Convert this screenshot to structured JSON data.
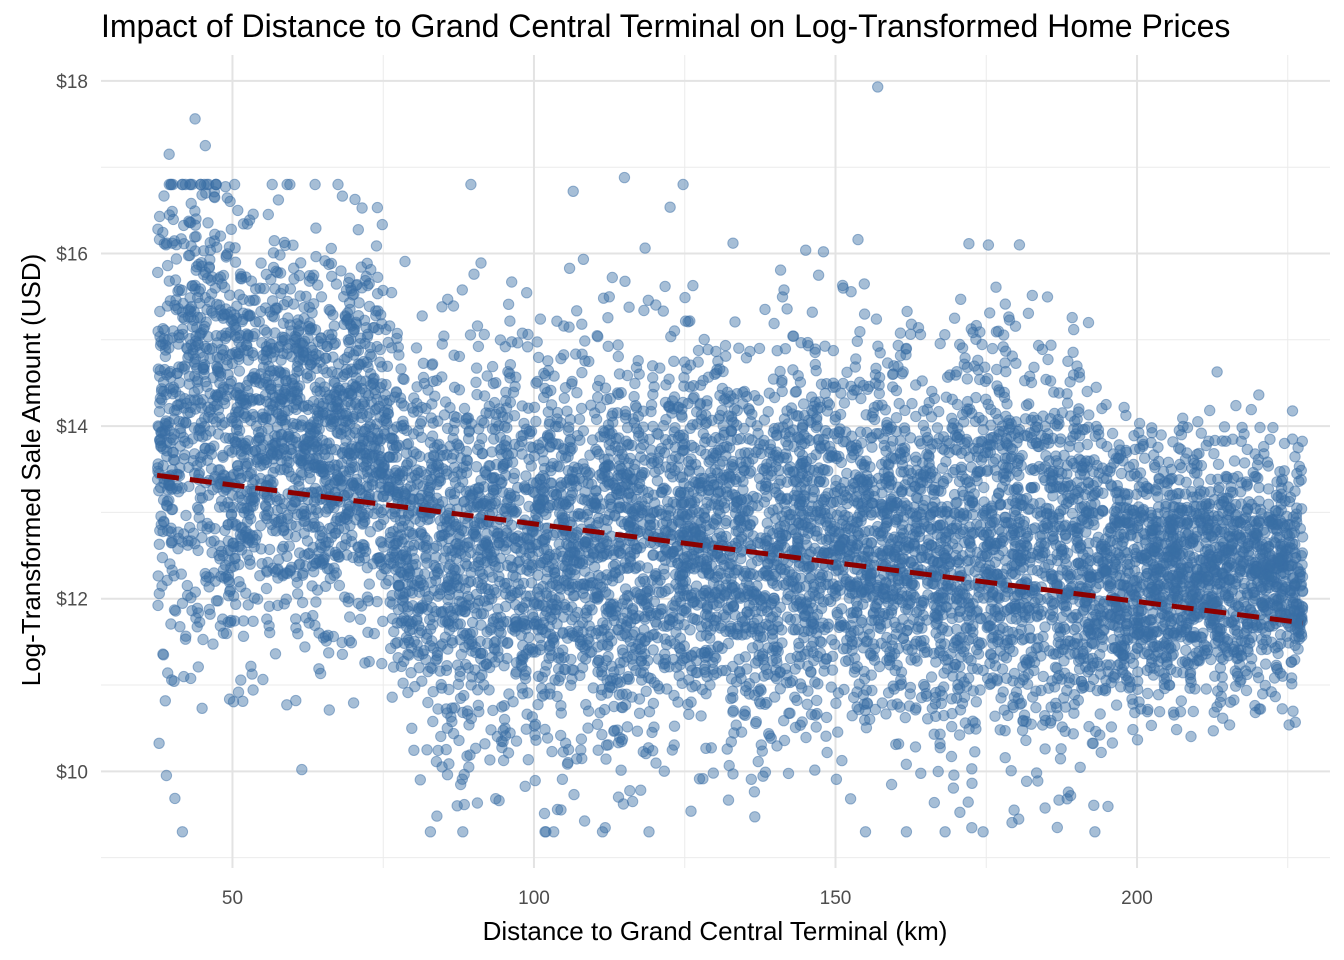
{
  "chart_data": {
    "type": "scatter",
    "title": "Impact of Distance to Grand Central Terminal on Log-Transformed Home Prices",
    "xlabel": "Distance to Grand Central Terminal (km)",
    "ylabel": "Log-Transformed Sale Amount (USD)",
    "xlim": [
      28.2,
      232.0
    ],
    "ylim": [
      8.88,
      18.3
    ],
    "x_ticks": [
      50,
      100,
      150,
      200
    ],
    "y_ticks": [
      10,
      12,
      14,
      16,
      18
    ],
    "y_tick_prefix": "$",
    "grid": true,
    "point_color": "#3a6ea5",
    "point_alpha": 0.45,
    "trend_color": "#8b0000",
    "trend_line": {
      "x": [
        37.5,
        227.5
      ],
      "y": [
        13.43,
        11.72
      ]
    },
    "density_profile": {
      "x": [
        37.5,
        42,
        45,
        50,
        55,
        60,
        65,
        70,
        75,
        78,
        80,
        85,
        90,
        95,
        100,
        105,
        110,
        115,
        120,
        125,
        130,
        135,
        140,
        145,
        150,
        155,
        160,
        165,
        170,
        175,
        180,
        185,
        190,
        195,
        200,
        205,
        210,
        215,
        220,
        227.5
      ],
      "center": [
        13.8,
        14.5,
        14.5,
        13.9,
        13.8,
        13.9,
        13.8,
        13.9,
        13.6,
        13.0,
        12.6,
        12.6,
        12.5,
        12.6,
        12.5,
        12.5,
        12.6,
        12.5,
        12.6,
        12.5,
        12.7,
        12.6,
        12.6,
        12.7,
        12.8,
        12.7,
        12.6,
        12.6,
        12.5,
        12.6,
        12.6,
        12.5,
        12.5,
        12.4,
        12.3,
        12.3,
        12.3,
        12.2,
        12.2,
        12.3
      ],
      "spread": [
        1.2,
        1.5,
        1.5,
        1.2,
        1.1,
        1.15,
        1.1,
        1.1,
        1.0,
        1.0,
        1.15,
        1.2,
        1.2,
        1.15,
        1.15,
        1.15,
        1.2,
        1.2,
        1.15,
        1.15,
        1.15,
        1.15,
        1.15,
        1.2,
        1.2,
        1.15,
        1.15,
        1.1,
        1.2,
        1.2,
        1.2,
        1.25,
        1.1,
        0.95,
        0.8,
        0.75,
        0.75,
        0.75,
        0.7,
        0.6
      ]
    },
    "notable_points": [
      {
        "x": 157.0,
        "y": 17.93
      },
      {
        "x": 43.8,
        "y": 17.56
      },
      {
        "x": 39.5,
        "y": 17.15
      },
      {
        "x": 45.5,
        "y": 17.25
      },
      {
        "x": 115.0,
        "y": 16.88
      },
      {
        "x": 133.0,
        "y": 16.12
      },
      {
        "x": 148.0,
        "y": 16.02
      },
      {
        "x": 180.5,
        "y": 16.1
      },
      {
        "x": 61.5,
        "y": 10.02
      },
      {
        "x": 60.5,
        "y": 10.82
      },
      {
        "x": 40.0,
        "y": 12.33
      },
      {
        "x": 48.5,
        "y": 11.6
      }
    ],
    "point_count_drawn": 9000,
    "random_seed": 42
  }
}
